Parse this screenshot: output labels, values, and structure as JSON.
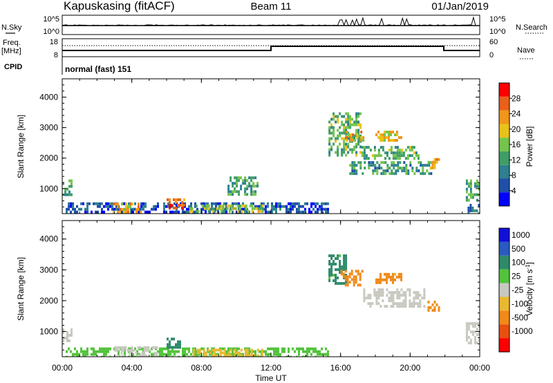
{
  "header": {
    "station": "Kapuskasing (fitACF)",
    "beam": "Beam 11",
    "date": "01/Jan/2019"
  },
  "noise_panel": {
    "left_label": "N.Sky",
    "right_label": "N.Search",
    "left_ticks": [
      "10^5",
      "10^0"
    ],
    "right_ticks": [
      "10^5",
      "10^0"
    ]
  },
  "freq_panel": {
    "left_label_line1": "Freq.",
    "left_label_line2": "[MHz]",
    "left_ticks": [
      "18",
      "8"
    ],
    "right_ticks": [
      "60",
      "0"
    ],
    "right_label": "Nave"
  },
  "cpid": {
    "label": "CPID",
    "value": "normal (fast) 151"
  },
  "colors": {
    "power_scale": [
      "#0000ff",
      "#1f4fa8",
      "#2e7f8f",
      "#3f9e66",
      "#74c44d",
      "#e8c21a",
      "#f0961a",
      "#e8601a",
      "#ff0000"
    ],
    "velocity_scale": [
      "#1010d8",
      "#2a5bc0",
      "#2f8a6a",
      "#52c33a",
      "#c8c8c0",
      "#e8b830",
      "#f08a18",
      "#e85010",
      "#ff0000"
    ],
    "ground_scatter": "#c0c0c0"
  },
  "chart_data": [
    {
      "type": "heatmap",
      "name": "power",
      "ylabel": "Slant Range [km]",
      "ylim": [
        180,
        4600
      ],
      "y_ticks": [
        "1000",
        "2000",
        "3000",
        "4000"
      ],
      "xlim": [
        0,
        24
      ],
      "x_ticks": [
        "00:00",
        "04:00",
        "08:00",
        "12:00",
        "16:00",
        "20:00",
        "00:00"
      ],
      "colorbar": {
        "label": "Power [dB]",
        "range": [
          0,
          32
        ],
        "ticks": [
          "4",
          "8",
          "12",
          "16",
          "20",
          "24",
          "28"
        ]
      },
      "blobs": [
        {
          "t0": 0.0,
          "t1": 0.5,
          "r0": 800,
          "r1": 1300,
          "value": 12
        },
        {
          "t0": 0.2,
          "t1": 15.3,
          "r0": 200,
          "r1": 550,
          "value": 6
        },
        {
          "t0": 2.9,
          "t1": 4.5,
          "r0": 260,
          "r1": 540,
          "value": 22
        },
        {
          "t0": 6.0,
          "t1": 7.0,
          "r0": 380,
          "r1": 680,
          "value": 26
        },
        {
          "t0": 7.3,
          "t1": 11.5,
          "r0": 250,
          "r1": 480,
          "value": 17
        },
        {
          "t0": 9.5,
          "t1": 11.2,
          "r0": 800,
          "r1": 1400,
          "value": 12
        },
        {
          "t0": 15.3,
          "t1": 17.2,
          "r0": 2100,
          "r1": 3500,
          "value": 14
        },
        {
          "t0": 16.3,
          "t1": 17.3,
          "r0": 2600,
          "r1": 2900,
          "value": 22
        },
        {
          "t0": 17.2,
          "t1": 20.5,
          "r0": 2000,
          "r1": 2400,
          "value": 14
        },
        {
          "t0": 18.0,
          "t1": 19.5,
          "r0": 2600,
          "r1": 2900,
          "value": 20
        },
        {
          "t0": 16.5,
          "t1": 21.2,
          "r0": 1500,
          "r1": 1900,
          "value": 11
        },
        {
          "t0": 21.0,
          "t1": 21.6,
          "r0": 1700,
          "r1": 2000,
          "value": 20
        },
        {
          "t0": 23.2,
          "t1": 24.0,
          "r0": 600,
          "r1": 1300,
          "value": 12
        },
        {
          "t0": 23.3,
          "t1": 24.0,
          "r0": 180,
          "r1": 500,
          "value": 8
        }
      ]
    },
    {
      "type": "heatmap",
      "name": "velocity",
      "ylabel": "Slant Range [km]",
      "ylim": [
        180,
        4600
      ],
      "y_ticks": [
        "1000",
        "2000",
        "3000",
        "4000"
      ],
      "xlim": [
        0,
        24
      ],
      "x_ticks": [
        "00:00",
        "04:00",
        "08:00",
        "12:00",
        "16:00",
        "20:00",
        "00:00"
      ],
      "xlabel": "Time UT",
      "colorbar": {
        "label": "Velocity [m s^-1]",
        "ticks": [
          "1000",
          "500",
          "100",
          "25",
          "-25",
          "-100",
          "-500",
          "-1000"
        ]
      },
      "blobs": [
        {
          "t0": 0.0,
          "t1": 0.5,
          "r0": 700,
          "r1": 1100,
          "value": 0
        },
        {
          "t0": 0.2,
          "t1": 15.3,
          "r0": 200,
          "r1": 480,
          "value": 60
        },
        {
          "t0": 3.0,
          "t1": 5.5,
          "r0": 250,
          "r1": 520,
          "value": 0
        },
        {
          "t0": 7.5,
          "t1": 11.5,
          "r0": 230,
          "r1": 440,
          "value": -70
        },
        {
          "t0": 6.0,
          "t1": 6.8,
          "r0": 500,
          "r1": 800,
          "value": 200
        },
        {
          "t0": 15.3,
          "t1": 16.3,
          "r0": 2600,
          "r1": 3500,
          "value": 150
        },
        {
          "t0": 16.0,
          "t1": 17.3,
          "r0": 2500,
          "r1": 3000,
          "value": -300
        },
        {
          "t0": 17.3,
          "t1": 20.8,
          "r0": 1800,
          "r1": 2400,
          "value": 0
        },
        {
          "t0": 18.0,
          "t1": 19.5,
          "r0": 2600,
          "r1": 2900,
          "value": -150
        },
        {
          "t0": 21.0,
          "t1": 21.6,
          "r0": 1700,
          "r1": 2000,
          "value": -300
        },
        {
          "t0": 23.2,
          "t1": 24.0,
          "r0": 600,
          "r1": 1300,
          "value": 0
        }
      ]
    }
  ]
}
